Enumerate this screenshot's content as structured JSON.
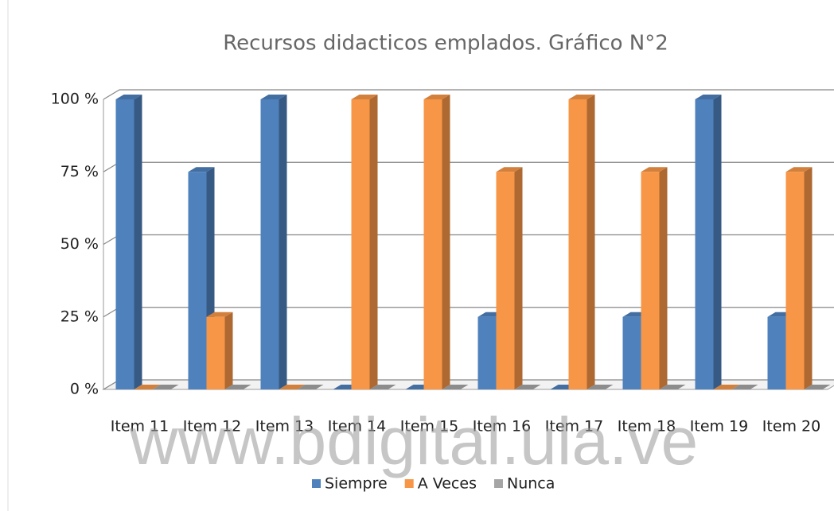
{
  "chart_data": {
    "type": "bar3d",
    "title": "Recursos didacticos emplados. Gráfico N°2",
    "categories": [
      "Item 11",
      "Item 12",
      "Item 13",
      "Item 14",
      "Item 15",
      "Item 16",
      "Item 17",
      "Item 18",
      "Item 19",
      "Item 20"
    ],
    "series": [
      {
        "name": "Siempre",
        "color": "#4f81bd",
        "values": [
          100,
          75,
          100,
          0,
          0,
          25,
          0,
          25,
          100,
          25
        ]
      },
      {
        "name": "A Veces",
        "color": "#f79646",
        "values": [
          0,
          25,
          0,
          100,
          100,
          75,
          100,
          75,
          0,
          75
        ]
      },
      {
        "name": "Nunca",
        "color": "#a5a5a5",
        "values": [
          0,
          0,
          0,
          0,
          0,
          0,
          0,
          0,
          0,
          0
        ]
      }
    ],
    "ylim": [
      0,
      100
    ],
    "yticks": [
      {
        "value": 0,
        "label": "0 %"
      },
      {
        "value": 25,
        "label": "25 %"
      },
      {
        "value": 50,
        "label": "50 %"
      },
      {
        "value": 75,
        "label": "75 %"
      },
      {
        "value": 100,
        "label": "100 %"
      }
    ],
    "grid": true,
    "legend": "bottom",
    "watermark": "www.bdigital.ula.ve"
  }
}
